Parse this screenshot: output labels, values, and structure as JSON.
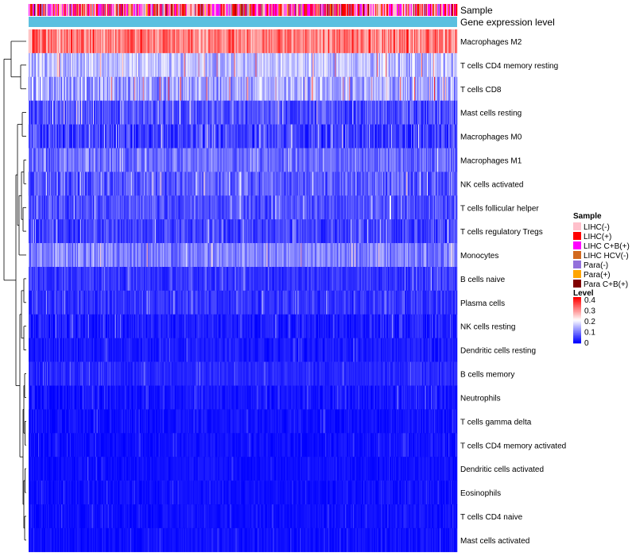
{
  "chart_data": {
    "type": "heatmap",
    "column_count": 540,
    "annotation_tracks": [
      {
        "key": "sample",
        "label": "Sample"
      },
      {
        "key": "level",
        "label": "Gene expression level"
      }
    ],
    "rows": [
      {
        "label": "Macrophages M2",
        "mean": 0.3,
        "spread": 0.07
      },
      {
        "label": "T cells CD4 memory resting",
        "mean": 0.15,
        "spread": 0.06
      },
      {
        "label": "T cells CD8",
        "mean": 0.13,
        "spread": 0.07
      },
      {
        "label": "Mast cells resting",
        "mean": 0.06,
        "spread": 0.05
      },
      {
        "label": "Macrophages M0",
        "mean": 0.05,
        "spread": 0.05
      },
      {
        "label": "Macrophages M1",
        "mean": 0.08,
        "spread": 0.04
      },
      {
        "label": "NK cells activated",
        "mean": 0.07,
        "spread": 0.05
      },
      {
        "label": "T cells follicular helper",
        "mean": 0.06,
        "spread": 0.04
      },
      {
        "label": "T cells regulatory  Tregs",
        "mean": 0.05,
        "spread": 0.04
      },
      {
        "label": "Monocytes",
        "mean": 0.1,
        "spread": 0.05
      },
      {
        "label": "B cells naive",
        "mean": 0.04,
        "spread": 0.03
      },
      {
        "label": "Plasma cells",
        "mean": 0.04,
        "spread": 0.03
      },
      {
        "label": "NK cells resting",
        "mean": 0.02,
        "spread": 0.03
      },
      {
        "label": "Dendritic cells resting",
        "mean": 0.02,
        "spread": 0.02
      },
      {
        "label": "B cells memory",
        "mean": 0.03,
        "spread": 0.02
      },
      {
        "label": "Neutrophils",
        "mean": 0.015,
        "spread": 0.02
      },
      {
        "label": "T cells gamma delta",
        "mean": 0.01,
        "spread": 0.02
      },
      {
        "label": "T cells CD4 memory activated",
        "mean": 0.01,
        "spread": 0.015
      },
      {
        "label": "Dendritic cells activated",
        "mean": 0.01,
        "spread": 0.015
      },
      {
        "label": "Eosinophils",
        "mean": 0.01,
        "spread": 0.015
      },
      {
        "label": "T cells CD4 naive",
        "mean": 0.01,
        "spread": 0.015
      },
      {
        "label": "Mast cells activated",
        "mean": 0.01,
        "spread": 0.015
      }
    ],
    "sample_legend": {
      "title": "Sample",
      "items": [
        {
          "label": "LIHC(-)",
          "color": "#ffc0cb"
        },
        {
          "label": "LIHC(+)",
          "color": "#ff0000"
        },
        {
          "label": "LIHC C+B(+)",
          "color": "#ff00ff"
        },
        {
          "label": "LIHC HCV(-)",
          "color": "#d2691e"
        },
        {
          "label": "Para(-)",
          "color": "#9370db"
        },
        {
          "label": "Para(+)",
          "color": "#ffa500"
        },
        {
          "label": "Para C+B(+)",
          "color": "#800000"
        }
      ]
    },
    "level_legend": {
      "title": "Level",
      "range": [
        0,
        0.4
      ],
      "ticks": [
        "0.4",
        "0.3",
        "0.2",
        "0.1",
        "0"
      ]
    },
    "colors": {
      "low": "#0000ff",
      "mid": "#ffffff",
      "high": "#ff0000",
      "level_track": "#5bc0e0"
    }
  }
}
